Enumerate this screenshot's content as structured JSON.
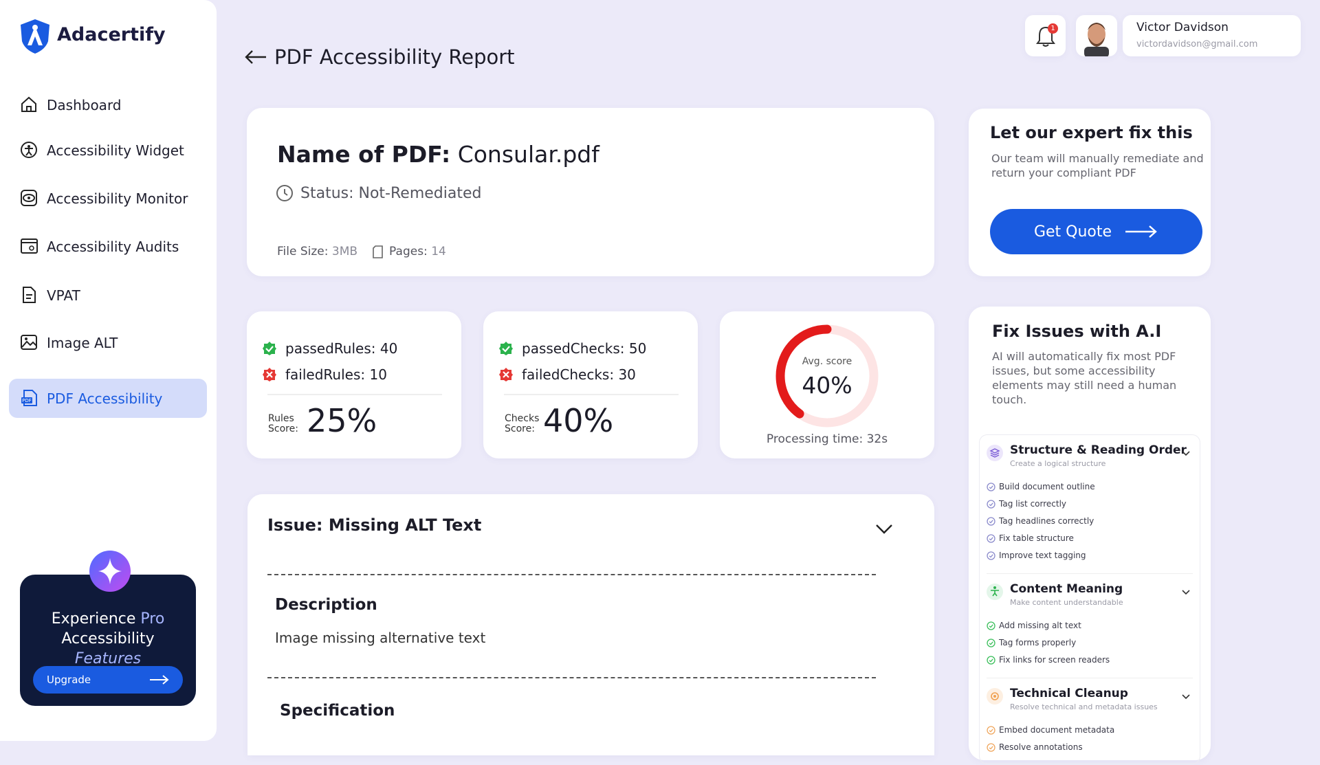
{
  "sidebar": {
    "brand": "Adacertify",
    "nav": [
      "Dashboard",
      "Accessibility Widget",
      "Accessibility Monitor",
      "Accessibility Audits",
      "VPAT",
      "Image ALT",
      "PDF Accessibility"
    ],
    "promo": {
      "line1_a": "Experience",
      "line1_b": "Pro",
      "line2": "Accessibility",
      "line3": "Features",
      "button": "Upgrade"
    }
  },
  "header": {
    "title": "PDF Accessibility Report",
    "notifications": "1",
    "user_name": "Victor Davidson",
    "user_email": "victordavidson@gmail.com"
  },
  "pdf": {
    "name_label": "Name of PDF:",
    "name": "Consular.pdf",
    "status": "Status: Not-Remediated",
    "size_label": "File Size:",
    "size": "3MB",
    "pages_label": "Pages:",
    "pages": "14"
  },
  "rules": {
    "passed_label": "passedRules:",
    "passed": "40",
    "failed_label": "failedRules:",
    "failed": "10",
    "score_label_1": "Rules",
    "score_label_2": "Score:",
    "score": "25%"
  },
  "checks": {
    "passed_label": "passedChecks:",
    "passed": "50",
    "failed_label": "failedChecks:",
    "failed": "30",
    "score_label_1": "Checks",
    "score_label_2": "Score:",
    "score": "40%"
  },
  "avg_score": {
    "label": "Avg. score",
    "value": 40,
    "value_label": "40%",
    "processing": "Processing time: 32s"
  },
  "expert": {
    "title": "Let our expert fix this",
    "text": "Our team will manually remediate and return your compliant PDF",
    "button": "Get Quote"
  },
  "issue": {
    "title": "Issue: Missing ALT Text",
    "description_heading": "Description",
    "description": "Image missing alternative text",
    "specification_heading": "Specification"
  },
  "ai": {
    "title": "Fix Issues with A.I",
    "text": "AI will automatically fix most PDF issues, but some accessibility elements may still need a human touch.",
    "groups": [
      {
        "title": "Structure & Reading Order",
        "subtitle": "Create a logical structure",
        "items": [
          "Build document outline",
          "Tag list correctly",
          "Tag headlines correctly",
          "Fix table structure",
          "Improve text tagging"
        ]
      },
      {
        "title": "Content Meaning",
        "subtitle": "Make content understandable",
        "items": [
          "Add missing alt text",
          "Tag forms properly",
          "Fix links for screen readers"
        ]
      },
      {
        "title": "Technical Cleanup",
        "subtitle": "Resolve technical and metadata issues",
        "items": [
          "Embed document metadata",
          "Resolve annotations"
        ]
      }
    ]
  }
}
